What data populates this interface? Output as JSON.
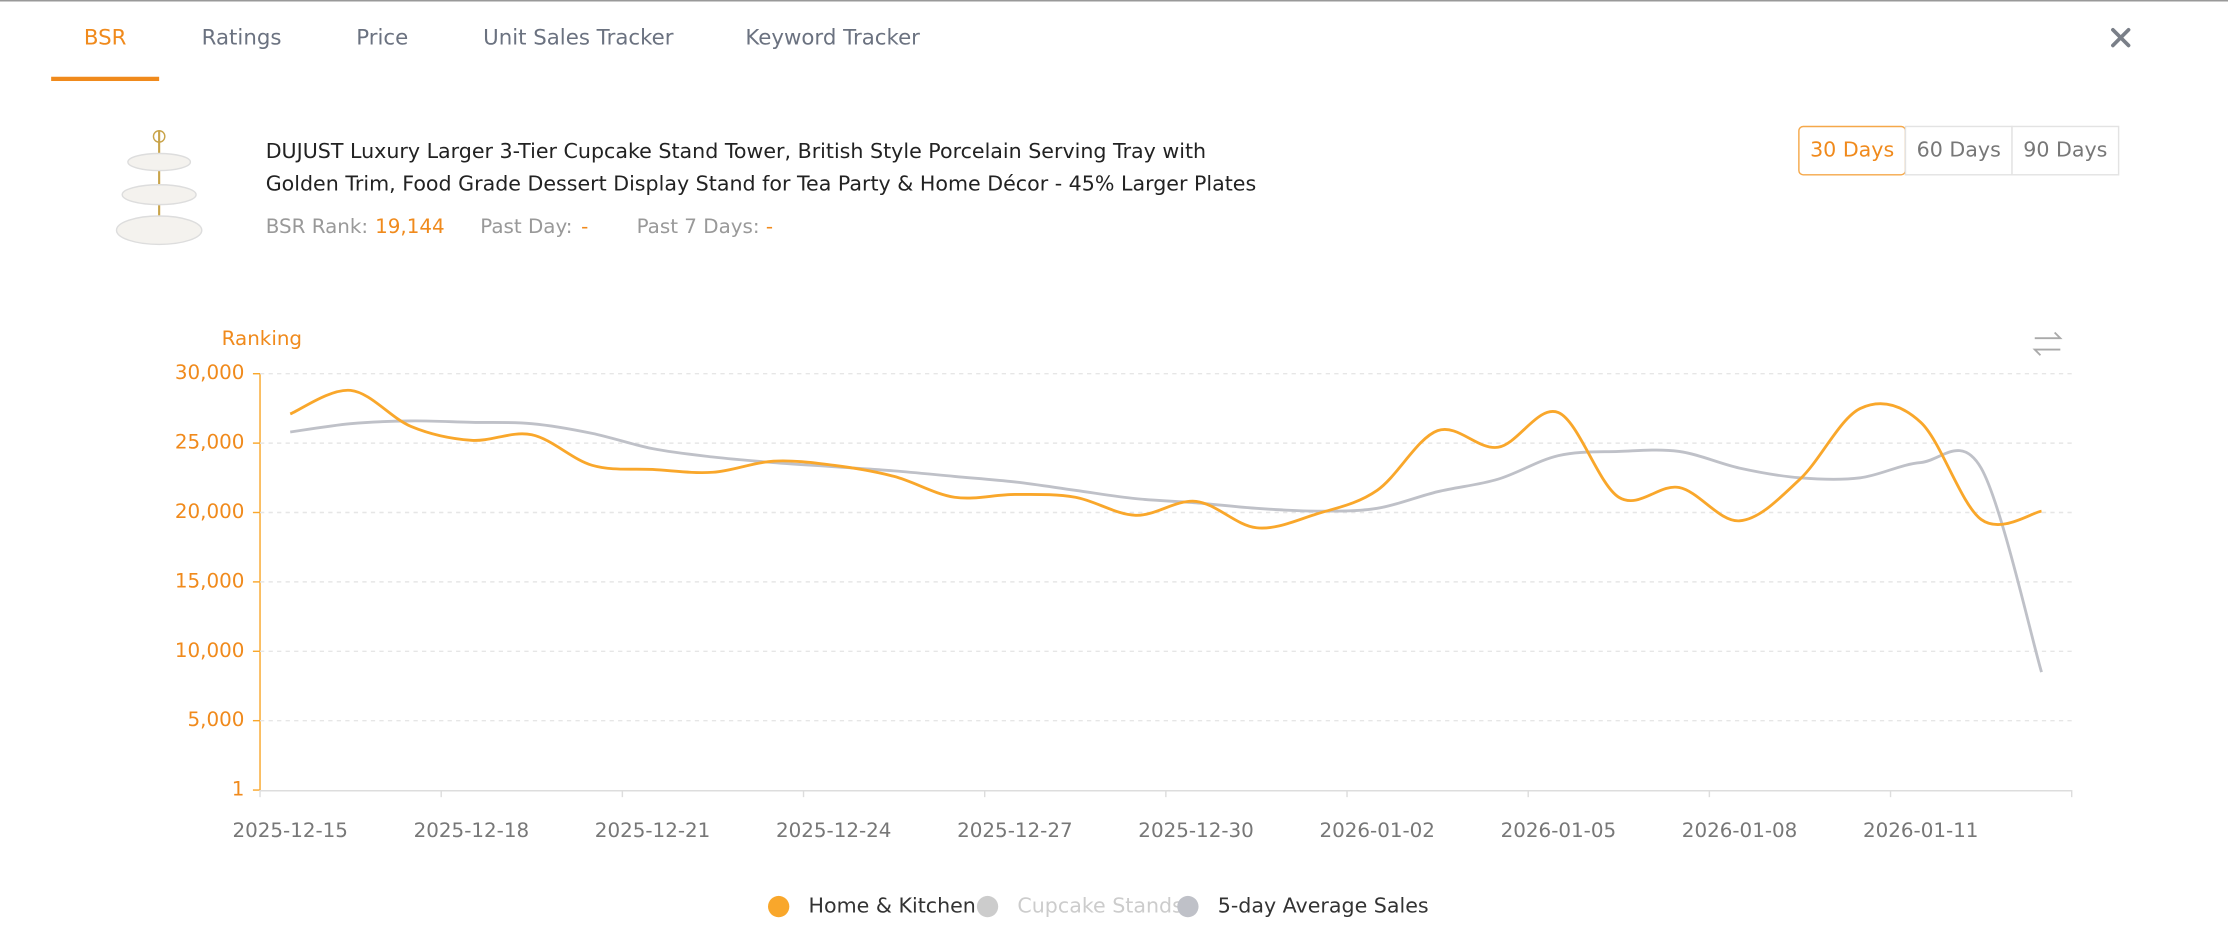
{
  "tabs": [
    "BSR",
    "Ratings",
    "Price",
    "Unit Sales Tracker",
    "Keyword Tracker"
  ],
  "product": {
    "title_lines": [
      "DUJUST Luxury Larger 3-Tier Cupcake Stand Tower, British Style Porcelain Serving Tray with",
      "Golden Trim, Food Grade Dessert Display Stand for Tea Party & Home Décor - 45% Larger Plates"
    ],
    "stats": [
      {
        "label": "BSR Rank:",
        "value": "19,144"
      },
      {
        "label": "Past Day:",
        "value": "-"
      },
      {
        "label": "Past 7 Days:",
        "value": "-"
      }
    ]
  },
  "ranges": [
    "30 Days",
    "60 Days",
    "90 Days"
  ],
  "chart_data": {
    "type": "line",
    "y_label": "Ranking",
    "categories": [
      "2025-12-15",
      null,
      null,
      "2025-12-18",
      null,
      null,
      "2025-12-21",
      null,
      null,
      "2025-12-24",
      null,
      null,
      "2025-12-27",
      null,
      null,
      "2025-12-30",
      null,
      null,
      "2026-01-02",
      null,
      null,
      "2026-01-05",
      null,
      null,
      "2026-01-08",
      null,
      null,
      "2026-01-11",
      null,
      null
    ],
    "series": [
      {
        "name": "Home & Kitchen",
        "color": "#f9a72b",
        "values": [
          27100,
          28800,
          26200,
          25200,
          25600,
          23400,
          23100,
          22900,
          23700,
          23400,
          22600,
          21100,
          21300,
          21100,
          19800,
          20800,
          18900,
          19900,
          21600,
          25900,
          24700,
          27200,
          21100,
          21800,
          19400,
          22400,
          27500,
          26500,
          19500,
          20100
        ]
      },
      {
        "name": "Cupcake Stands",
        "color": "#cccccc",
        "hidden": true
      },
      {
        "name": "5-day Average Sales",
        "color": "#bfc1c8",
        "values": [
          25800,
          26400,
          26600,
          26500,
          26400,
          25700,
          24600,
          24000,
          23600,
          23300,
          23000,
          22600,
          22200,
          21600,
          21000,
          20700,
          20300,
          20100,
          20300,
          21500,
          22400,
          24100,
          24400,
          24400,
          23200,
          22500,
          22500,
          23600,
          23200,
          8500
        ]
      }
    ],
    "ylim": [
      1,
      30000
    ],
    "yticks": [
      1,
      {
        "value": 5000,
        "label": "5,000"
      },
      {
        "value": 10000,
        "label": "10,000"
      },
      {
        "value": 15000,
        "label": "15,000"
      },
      {
        "value": 20000,
        "label": "20,000"
      },
      {
        "value": 25000,
        "label": "25,000"
      },
      {
        "value": 30000,
        "label": "30,000"
      }
    ],
    "grid": true
  }
}
